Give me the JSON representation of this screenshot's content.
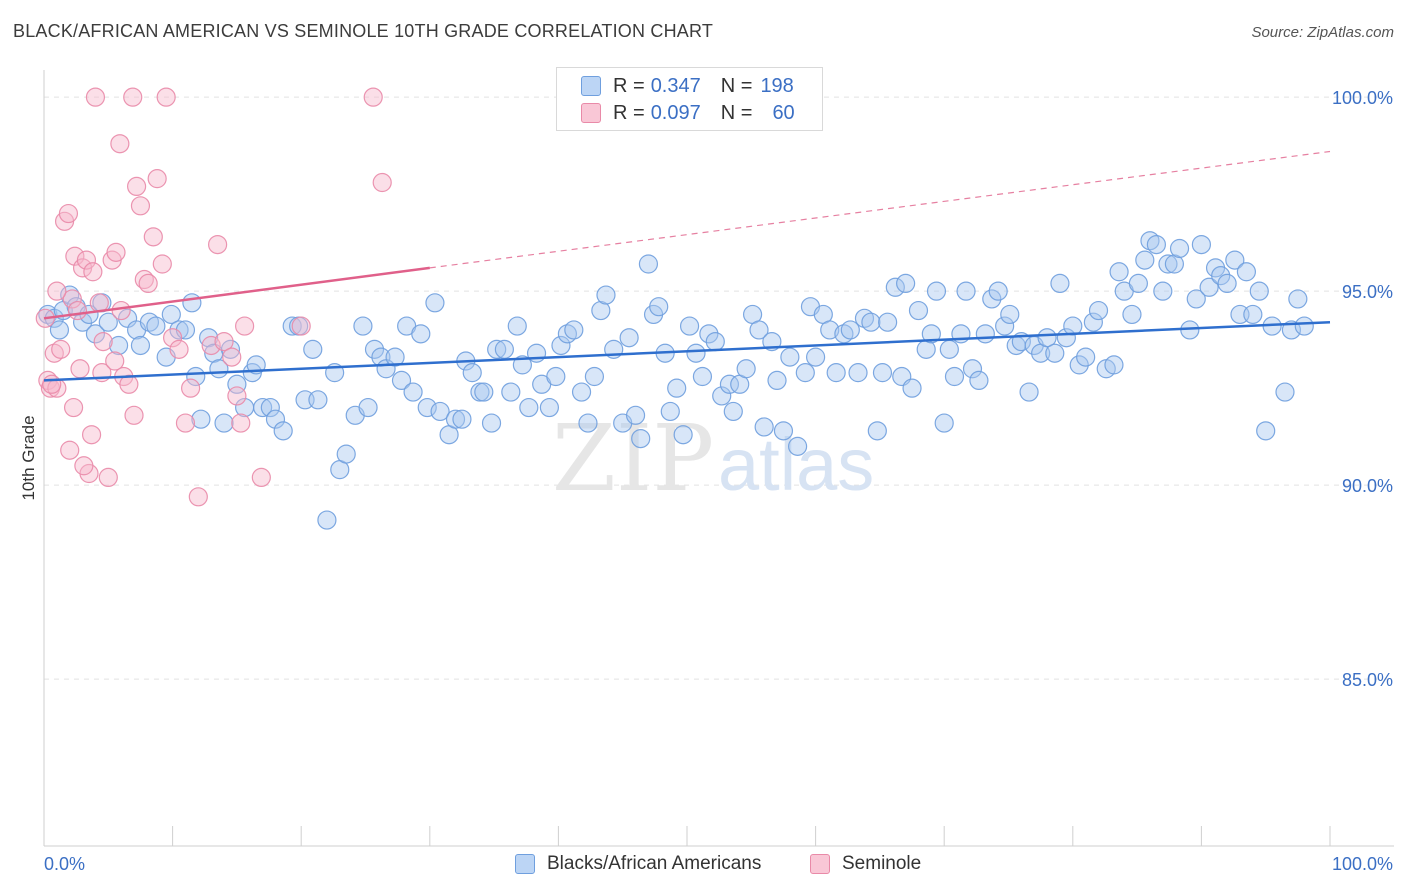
{
  "title": "BLACK/AFRICAN AMERICAN VS SEMINOLE 10TH GRADE CORRELATION CHART",
  "source": "Source: ZipAtlas.com",
  "watermark": {
    "zip": "ZIP",
    "atlas": "atlas"
  },
  "colors": {
    "blue_fill": "#a8c8f0",
    "blue_stroke": "#6f9fde",
    "blue_line": "#2f6fce",
    "pink_fill": "#f6b7cb",
    "pink_stroke": "#e98aa8",
    "pink_line": "#e0608a",
    "axis_label": "#3b6fc4",
    "grid": "#e2e2e2"
  },
  "legend_top": [
    {
      "r_label": "R = ",
      "r_value": "0.347",
      "n_label": "N = ",
      "n_value": "198"
    },
    {
      "r_label": "R = ",
      "r_value": "0.097",
      "n_label": "N = ",
      "n_value": "60"
    }
  ],
  "legend_bottom": [
    {
      "label": "Blacks/African Americans"
    },
    {
      "label": "Seminole"
    }
  ],
  "chart_data": {
    "type": "scatter",
    "title": "BLACK/AFRICAN AMERICAN VS SEMINOLE 10TH GRADE CORRELATION CHART",
    "xlabel": "",
    "ylabel": "10th Grade",
    "xlim": [
      0,
      100
    ],
    "ylim": [
      80.7,
      100.7
    ],
    "x_tick_labels": [
      "0.0%",
      "100.0%"
    ],
    "y_ticks": [
      85,
      90,
      95,
      100
    ],
    "y_tick_labels": [
      "85.0%",
      "90.0%",
      "95.0%",
      "100.0%"
    ],
    "series": [
      {
        "name": "Blacks/African Americans",
        "r": 0.347,
        "n": 198,
        "trend": {
          "x": [
            0,
            100
          ],
          "y": [
            92.7,
            94.2
          ],
          "style": "solid"
        },
        "points": [
          [
            0.3,
            94.4
          ],
          [
            0.8,
            94.3
          ],
          [
            1.2,
            94.0
          ],
          [
            1.5,
            94.5
          ],
          [
            2.0,
            94.9
          ],
          [
            2.5,
            94.6
          ],
          [
            3.0,
            94.2
          ],
          [
            3.5,
            94.4
          ],
          [
            4.0,
            93.9
          ],
          [
            4.5,
            94.7
          ],
          [
            5.0,
            94.2
          ],
          [
            5.8,
            93.6
          ],
          [
            6.5,
            94.3
          ],
          [
            7.2,
            94.0
          ],
          [
            7.5,
            93.6
          ],
          [
            8.2,
            94.2
          ],
          [
            8.7,
            94.1
          ],
          [
            9.5,
            93.3
          ],
          [
            9.9,
            94.4
          ],
          [
            10.5,
            94.0
          ],
          [
            11.0,
            94.0
          ],
          [
            11.5,
            94.7
          ],
          [
            11.8,
            92.8
          ],
          [
            12.2,
            91.7
          ],
          [
            12.8,
            93.8
          ],
          [
            13.2,
            93.4
          ],
          [
            13.6,
            93.0
          ],
          [
            14.0,
            91.6
          ],
          [
            14.5,
            93.5
          ],
          [
            15.0,
            92.6
          ],
          [
            15.6,
            92.0
          ],
          [
            16.2,
            92.9
          ],
          [
            16.5,
            93.1
          ],
          [
            17.0,
            92.0
          ],
          [
            17.6,
            92.0
          ],
          [
            18.0,
            91.7
          ],
          [
            18.6,
            91.4
          ],
          [
            19.3,
            94.1
          ],
          [
            19.8,
            94.1
          ],
          [
            20.3,
            92.2
          ],
          [
            20.9,
            93.5
          ],
          [
            21.3,
            92.2
          ],
          [
            22.0,
            89.1
          ],
          [
            22.6,
            92.9
          ],
          [
            23.0,
            90.4
          ],
          [
            23.5,
            90.8
          ],
          [
            24.2,
            91.8
          ],
          [
            24.8,
            94.1
          ],
          [
            25.2,
            92.0
          ],
          [
            25.7,
            93.5
          ],
          [
            26.2,
            93.3
          ],
          [
            26.6,
            93.0
          ],
          [
            27.3,
            93.3
          ],
          [
            27.8,
            92.7
          ],
          [
            28.2,
            94.1
          ],
          [
            28.7,
            92.4
          ],
          [
            29.3,
            93.9
          ],
          [
            29.8,
            92.0
          ],
          [
            30.4,
            94.7
          ],
          [
            30.8,
            91.9
          ],
          [
            31.5,
            91.3
          ],
          [
            32.0,
            91.7
          ],
          [
            32.5,
            91.7
          ],
          [
            32.8,
            93.2
          ],
          [
            33.3,
            92.9
          ],
          [
            33.9,
            92.4
          ],
          [
            34.2,
            92.4
          ],
          [
            34.8,
            91.6
          ],
          [
            35.2,
            93.5
          ],
          [
            35.8,
            93.5
          ],
          [
            36.3,
            92.4
          ],
          [
            36.8,
            94.1
          ],
          [
            37.2,
            93.1
          ],
          [
            37.7,
            92.0
          ],
          [
            38.3,
            93.4
          ],
          [
            38.7,
            92.6
          ],
          [
            39.3,
            92.0
          ],
          [
            39.8,
            92.8
          ],
          [
            40.2,
            93.6
          ],
          [
            40.7,
            93.9
          ],
          [
            41.2,
            94.0
          ],
          [
            41.8,
            92.4
          ],
          [
            42.3,
            91.6
          ],
          [
            42.8,
            92.8
          ],
          [
            43.3,
            94.5
          ],
          [
            43.7,
            94.9
          ],
          [
            44.3,
            93.5
          ],
          [
            45.0,
            91.6
          ],
          [
            45.5,
            93.8
          ],
          [
            46.0,
            91.8
          ],
          [
            46.4,
            91.2
          ],
          [
            47.0,
            95.7
          ],
          [
            47.4,
            94.4
          ],
          [
            47.8,
            94.6
          ],
          [
            48.3,
            93.4
          ],
          [
            48.7,
            91.9
          ],
          [
            49.2,
            92.5
          ],
          [
            49.7,
            91.3
          ],
          [
            50.2,
            94.1
          ],
          [
            50.7,
            93.4
          ],
          [
            51.2,
            92.8
          ],
          [
            51.7,
            93.9
          ],
          [
            52.2,
            93.7
          ],
          [
            52.7,
            92.3
          ],
          [
            53.3,
            92.6
          ],
          [
            53.6,
            91.9
          ],
          [
            54.1,
            92.6
          ],
          [
            54.6,
            93.0
          ],
          [
            55.1,
            94.4
          ],
          [
            55.6,
            94.0
          ],
          [
            56.0,
            91.5
          ],
          [
            56.6,
            93.7
          ],
          [
            57.0,
            92.7
          ],
          [
            57.5,
            91.4
          ],
          [
            58.0,
            93.3
          ],
          [
            58.6,
            91.0
          ],
          [
            59.2,
            92.9
          ],
          [
            59.6,
            94.6
          ],
          [
            60.0,
            93.3
          ],
          [
            60.6,
            94.4
          ],
          [
            61.1,
            94.0
          ],
          [
            61.6,
            92.9
          ],
          [
            62.2,
            93.9
          ],
          [
            62.7,
            94.0
          ],
          [
            63.3,
            92.9
          ],
          [
            63.8,
            94.3
          ],
          [
            64.3,
            94.2
          ],
          [
            64.8,
            91.4
          ],
          [
            65.2,
            92.9
          ],
          [
            65.6,
            94.2
          ],
          [
            66.2,
            95.1
          ],
          [
            66.7,
            92.8
          ],
          [
            67.0,
            95.2
          ],
          [
            67.5,
            92.5
          ],
          [
            68.0,
            94.5
          ],
          [
            68.6,
            93.5
          ],
          [
            69.0,
            93.9
          ],
          [
            69.4,
            95.0
          ],
          [
            70.0,
            91.6
          ],
          [
            70.4,
            93.5
          ],
          [
            70.8,
            92.8
          ],
          [
            71.3,
            93.9
          ],
          [
            71.7,
            95.0
          ],
          [
            72.2,
            93.0
          ],
          [
            72.7,
            92.7
          ],
          [
            73.2,
            93.9
          ],
          [
            73.7,
            94.8
          ],
          [
            74.2,
            95.0
          ],
          [
            74.7,
            94.1
          ],
          [
            75.1,
            94.4
          ],
          [
            75.6,
            93.6
          ],
          [
            76.0,
            93.7
          ],
          [
            76.6,
            92.4
          ],
          [
            77.0,
            93.6
          ],
          [
            77.5,
            93.4
          ],
          [
            78.0,
            93.8
          ],
          [
            78.6,
            93.4
          ],
          [
            79.0,
            95.2
          ],
          [
            79.5,
            93.8
          ],
          [
            80.0,
            94.1
          ],
          [
            80.5,
            93.1
          ],
          [
            81.0,
            93.3
          ],
          [
            81.6,
            94.2
          ],
          [
            82.0,
            94.5
          ],
          [
            82.6,
            93.0
          ],
          [
            83.2,
            93.1
          ],
          [
            83.6,
            95.5
          ],
          [
            84.0,
            95.0
          ],
          [
            84.6,
            94.4
          ],
          [
            85.1,
            95.2
          ],
          [
            85.6,
            95.8
          ],
          [
            86.0,
            96.3
          ],
          [
            86.5,
            96.2
          ],
          [
            87.0,
            95.0
          ],
          [
            87.4,
            95.7
          ],
          [
            87.9,
            95.7
          ],
          [
            88.3,
            96.1
          ],
          [
            89.1,
            94.0
          ],
          [
            89.6,
            94.8
          ],
          [
            90.0,
            96.2
          ],
          [
            90.6,
            95.1
          ],
          [
            91.1,
            95.6
          ],
          [
            91.5,
            95.4
          ],
          [
            92.0,
            95.2
          ],
          [
            92.6,
            95.8
          ],
          [
            93.0,
            94.4
          ],
          [
            93.5,
            95.5
          ],
          [
            94.0,
            94.4
          ],
          [
            94.5,
            95.0
          ],
          [
            95.0,
            91.4
          ],
          [
            95.5,
            94.1
          ],
          [
            96.5,
            92.4
          ],
          [
            97.0,
            94.0
          ],
          [
            97.5,
            94.8
          ],
          [
            98.0,
            94.1
          ]
        ]
      },
      {
        "name": "Seminole",
        "r": 0.097,
        "n": 60,
        "trend": {
          "x": [
            0,
            30
          ],
          "y": [
            94.3,
            95.6
          ],
          "style": "solid",
          "extended": {
            "x": [
              30,
              100
            ],
            "y": [
              95.6,
              98.6
            ],
            "style": "dashed"
          }
        },
        "points": [
          [
            0.1,
            94.3
          ],
          [
            0.3,
            92.7
          ],
          [
            0.5,
            92.5
          ],
          [
            0.8,
            93.4
          ],
          [
            1.0,
            92.5
          ],
          [
            1.3,
            93.5
          ],
          [
            1.6,
            96.8
          ],
          [
            1.9,
            97.0
          ],
          [
            2.2,
            94.8
          ],
          [
            2.4,
            95.9
          ],
          [
            2.6,
            94.5
          ],
          [
            2.8,
            93.0
          ],
          [
            3.0,
            95.6
          ],
          [
            3.3,
            95.8
          ],
          [
            3.5,
            90.3
          ],
          [
            3.8,
            95.5
          ],
          [
            4.0,
            100.0
          ],
          [
            4.3,
            94.7
          ],
          [
            4.6,
            93.7
          ],
          [
            5.0,
            90.2
          ],
          [
            5.3,
            95.8
          ],
          [
            5.6,
            96.0
          ],
          [
            5.9,
            98.8
          ],
          [
            6.2,
            92.8
          ],
          [
            6.6,
            92.6
          ],
          [
            6.9,
            100.0
          ],
          [
            7.2,
            97.7
          ],
          [
            7.5,
            97.2
          ],
          [
            7.8,
            95.3
          ],
          [
            8.1,
            95.2
          ],
          [
            8.5,
            96.4
          ],
          [
            8.8,
            97.9
          ],
          [
            9.2,
            95.7
          ],
          [
            9.5,
            100.0
          ],
          [
            10.0,
            93.8
          ],
          [
            10.5,
            93.5
          ],
          [
            11.0,
            91.6
          ],
          [
            11.4,
            92.5
          ],
          [
            12.0,
            89.7
          ],
          [
            13.0,
            93.6
          ],
          [
            13.5,
            96.2
          ],
          [
            14.0,
            93.7
          ],
          [
            14.6,
            93.3
          ],
          [
            15.0,
            92.3
          ],
          [
            15.3,
            91.6
          ],
          [
            15.6,
            94.1
          ],
          [
            16.9,
            90.2
          ],
          [
            20.0,
            94.1
          ],
          [
            25.6,
            100.0
          ],
          [
            26.3,
            97.8
          ],
          [
            2.0,
            90.9
          ],
          [
            3.1,
            90.5
          ],
          [
            0.6,
            92.6
          ],
          [
            1.0,
            95.0
          ],
          [
            4.5,
            92.9
          ],
          [
            6.0,
            94.5
          ],
          [
            5.5,
            93.2
          ],
          [
            3.7,
            91.3
          ],
          [
            7.0,
            91.8
          ],
          [
            2.3,
            92.0
          ]
        ]
      }
    ]
  }
}
